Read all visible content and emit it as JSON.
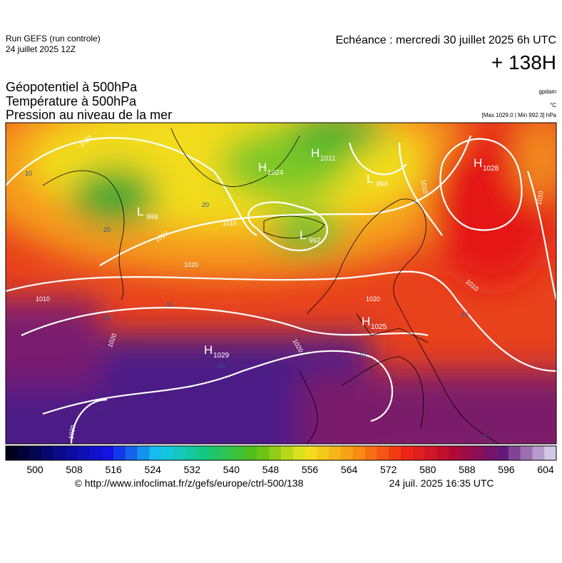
{
  "header": {
    "run": "Run GEFS (run controle)",
    "run_date": "24 juillet 2025 12Z",
    "valid": "Echéance : mercredi 30 juillet 2025 6h UTC",
    "lead": "+ 138H",
    "fields": [
      "Géopotentiel à 500hPa",
      "Température à 500hPa",
      "Pression au niveau de la mer"
    ],
    "units": [
      "gpdam",
      "°C",
      "[Max 1029.0 | Min 992.3] hPa"
    ]
  },
  "pressure_centers": [
    {
      "letter": "L",
      "value": "999"
    },
    {
      "letter": "H",
      "value": "1024"
    },
    {
      "letter": "H",
      "value": "1011"
    },
    {
      "letter": "L",
      "value": "994"
    },
    {
      "letter": "L",
      "value": "992"
    },
    {
      "letter": "H",
      "value": "1028"
    },
    {
      "letter": "H",
      "value": "1025"
    },
    {
      "letter": "H",
      "value": "1029"
    }
  ],
  "isobar_labels": [
    "1020",
    "1010",
    "1010",
    "1020",
    "1010",
    "1020",
    "1010",
    "1010",
    "1010",
    "1020",
    "1020",
    "1020"
  ],
  "temperature_labels": [
    "20",
    "20",
    "10",
    "10",
    "10",
    "10",
    "10",
    "10",
    "0"
  ],
  "colorbar": {
    "labels": [
      "500",
      "508",
      "516",
      "524",
      "532",
      "540",
      "548",
      "556",
      "564",
      "572",
      "580",
      "588",
      "596",
      "604"
    ]
  },
  "footer": {
    "source": "© http://www.infoclimat.fr/z/gefs/europe/ctrl-500/138",
    "generated": "24 juil. 2025 16:35 UTC"
  }
}
